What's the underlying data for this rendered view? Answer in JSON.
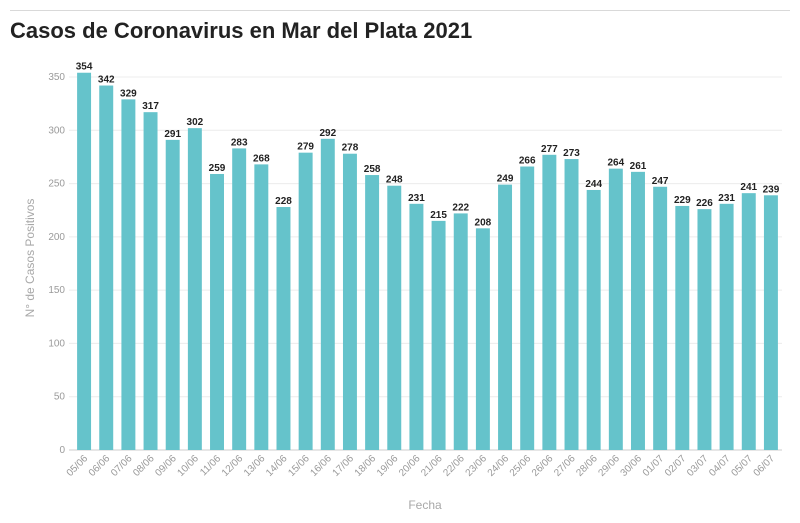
{
  "chart_data": {
    "type": "bar",
    "title": "Casos de Coronavirus en Mar del Plata 2021",
    "xlabel": "Fecha",
    "ylabel": "N° de Casos Positivos",
    "ylim": [
      0,
      350
    ],
    "yticks": [
      0,
      50,
      100,
      150,
      200,
      250,
      300,
      350
    ],
    "grid": true,
    "bar_color": "#65c3cb",
    "categories": [
      "05/06",
      "06/06",
      "07/06",
      "08/06",
      "09/06",
      "10/06",
      "11/06",
      "12/06",
      "13/06",
      "14/06",
      "15/06",
      "16/06",
      "17/06",
      "18/06",
      "19/06",
      "20/06",
      "21/06",
      "22/06",
      "23/06",
      "24/06",
      "25/06",
      "26/06",
      "27/06",
      "28/06",
      "29/06",
      "30/06",
      "01/07",
      "02/07",
      "03/07",
      "04/07",
      "05/07",
      "06/07"
    ],
    "values": [
      354,
      342,
      329,
      317,
      291,
      302,
      259,
      283,
      268,
      228,
      279,
      292,
      278,
      258,
      248,
      231,
      215,
      222,
      208,
      249,
      266,
      277,
      273,
      244,
      264,
      261,
      247,
      229,
      226,
      231,
      241,
      239
    ]
  }
}
